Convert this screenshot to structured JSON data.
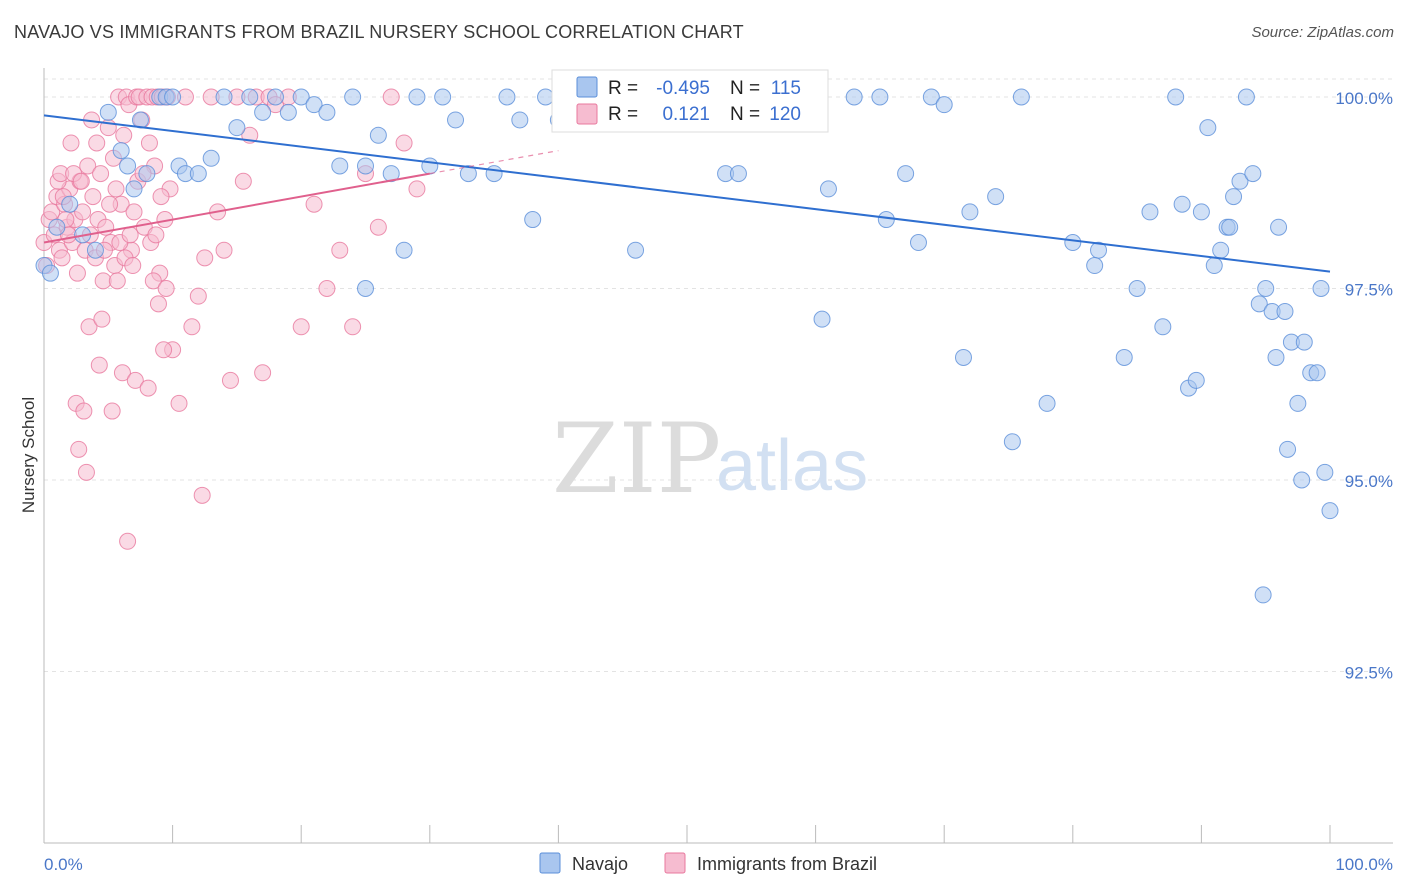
{
  "title": "NAVAJO VS IMMIGRANTS FROM BRAZIL NURSERY SCHOOL CORRELATION CHART",
  "source": "Source: ZipAtlas.com",
  "watermark": {
    "zip": "ZIP",
    "atlas": "atlas"
  },
  "colors": {
    "navajo_fill": "#a9c6ef",
    "navajo_stroke": "#5b8fd9",
    "navajo_line": "#2f6fd0",
    "brazil_fill": "#f6bcd0",
    "brazil_stroke": "#e8789e",
    "brazil_line": "#e0608d",
    "grid": "#e3e3e3",
    "tick_text": "#4a77c8"
  },
  "stats": {
    "r_label": "R =",
    "n_label": "N =",
    "navajo": {
      "r": "-0.495",
      "n": "115"
    },
    "brazil": {
      "r": "0.121",
      "n": "120"
    }
  },
  "chart_data": {
    "type": "scatter",
    "title": "NAVAJO VS IMMIGRANTS FROM BRAZIL NURSERY SCHOOL CORRELATION CHART",
    "xlabel": "",
    "ylabel": "Nursery School",
    "xlim": [
      0,
      100
    ],
    "ylim": [
      90.0,
      100.3
    ],
    "x_tick_labels": {
      "min": "0.0%",
      "max": "100.0%"
    },
    "y_ticks": [
      {
        "value": 100.0,
        "label": "100.0%"
      },
      {
        "value": 97.5,
        "label": "97.5%"
      },
      {
        "value": 95.0,
        "label": "95.0%"
      },
      {
        "value": 92.5,
        "label": "92.5%"
      }
    ],
    "legend": [
      {
        "name": "Navajo",
        "series": 0
      },
      {
        "name": "Immigrants from Brazil",
        "series": 1
      }
    ],
    "legend_position": "bottom-center",
    "grid": true,
    "trendlines": [
      {
        "series": 0,
        "x": [
          0,
          100
        ],
        "y": [
          99.76,
          97.72
        ]
      },
      {
        "series": 1,
        "x": [
          0,
          30
        ],
        "y": [
          98.1,
          99.0
        ],
        "dashed_to": [
          40,
          99.3
        ]
      }
    ],
    "series": [
      {
        "name": "Navajo",
        "points": [
          [
            0,
            97.8
          ],
          [
            0.5,
            97.7
          ],
          [
            1,
            98.3
          ],
          [
            2,
            98.6
          ],
          [
            3,
            98.2
          ],
          [
            4,
            98.0
          ],
          [
            5,
            99.8
          ],
          [
            6,
            99.3
          ],
          [
            6.5,
            99.1
          ],
          [
            7,
            98.8
          ],
          [
            7.5,
            99.7
          ],
          [
            8,
            99.0
          ],
          [
            9,
            100.0
          ],
          [
            9.5,
            100.0
          ],
          [
            10,
            100.0
          ],
          [
            10.5,
            99.1
          ],
          [
            11,
            99.0
          ],
          [
            12,
            99.0
          ],
          [
            13,
            99.2
          ],
          [
            14,
            100.0
          ],
          [
            15,
            99.6
          ],
          [
            16,
            100.0
          ],
          [
            17,
            99.8
          ],
          [
            18,
            100.0
          ],
          [
            19,
            99.8
          ],
          [
            20,
            100.0
          ],
          [
            21,
            99.9
          ],
          [
            22,
            99.8
          ],
          [
            23,
            99.1
          ],
          [
            24,
            100.0
          ],
          [
            25,
            99.1
          ],
          [
            26,
            99.5
          ],
          [
            27,
            99.0
          ],
          [
            25,
            97.5
          ],
          [
            28,
            98.0
          ],
          [
            29,
            100.0
          ],
          [
            30,
            99.1
          ],
          [
            31,
            100.0
          ],
          [
            32,
            99.7
          ],
          [
            33,
            99.0
          ],
          [
            35,
            99.0
          ],
          [
            36,
            100.0
          ],
          [
            37,
            99.7
          ],
          [
            38,
            98.4
          ],
          [
            39,
            100.0
          ],
          [
            40,
            99.7
          ],
          [
            42,
            100.0
          ],
          [
            44,
            100.0
          ],
          [
            46,
            98.0
          ],
          [
            48,
            100.0
          ],
          [
            50,
            100.0
          ],
          [
            52,
            99.7
          ],
          [
            53,
            99.0
          ],
          [
            54,
            99.0
          ],
          [
            55,
            100.0
          ],
          [
            57,
            99.8
          ],
          [
            59,
            100.0
          ],
          [
            61,
            98.8
          ],
          [
            63,
            100.0
          ],
          [
            65,
            100.0
          ],
          [
            67,
            99.0
          ],
          [
            68,
            98.1
          ],
          [
            69,
            100.0
          ],
          [
            70,
            99.9
          ],
          [
            72,
            98.5
          ],
          [
            74,
            98.7
          ],
          [
            76,
            100.0
          ],
          [
            78,
            96.0
          ],
          [
            80,
            98.1
          ],
          [
            82,
            98.0
          ],
          [
            84,
            96.6
          ],
          [
            85,
            97.5
          ],
          [
            86,
            98.5
          ],
          [
            87,
            97.0
          ],
          [
            88,
            100.0
          ],
          [
            89,
            96.2
          ],
          [
            90,
            98.5
          ],
          [
            91,
            97.8
          ],
          [
            91.5,
            98.0
          ],
          [
            92,
            98.3
          ],
          [
            92.5,
            98.7
          ],
          [
            93,
            98.9
          ],
          [
            93.5,
            100.0
          ],
          [
            94,
            99.0
          ],
          [
            94.5,
            97.3
          ],
          [
            95,
            97.5
          ],
          [
            95.5,
            97.2
          ],
          [
            96,
            98.3
          ],
          [
            96.5,
            97.2
          ],
          [
            97,
            96.8
          ],
          [
            97.5,
            96.0
          ],
          [
            97.8,
            95.0
          ],
          [
            98,
            96.8
          ],
          [
            98.5,
            96.4
          ],
          [
            99,
            96.4
          ],
          [
            99.3,
            97.5
          ],
          [
            99.6,
            95.1
          ],
          [
            100,
            94.6
          ],
          [
            94.8,
            93.5
          ],
          [
            96.7,
            95.4
          ],
          [
            92.2,
            98.3
          ],
          [
            88.5,
            98.6
          ],
          [
            90.5,
            99.6
          ],
          [
            89.6,
            96.3
          ],
          [
            60.5,
            97.1
          ],
          [
            65.5,
            98.4
          ],
          [
            71.5,
            96.6
          ],
          [
            75.3,
            95.5
          ],
          [
            81.7,
            97.8
          ],
          [
            95.8,
            96.6
          ]
        ]
      },
      {
        "name": "Immigrants from Brazil",
        "points": [
          [
            0,
            98.1
          ],
          [
            0.2,
            97.8
          ],
          [
            0.4,
            98.4
          ],
          [
            0.6,
            98.5
          ],
          [
            0.8,
            98.2
          ],
          [
            1,
            98.7
          ],
          [
            1.2,
            98.0
          ],
          [
            1.4,
            97.9
          ],
          [
            1.6,
            98.6
          ],
          [
            1.8,
            98.3
          ],
          [
            2,
            98.8
          ],
          [
            2.2,
            98.1
          ],
          [
            2.4,
            98.4
          ],
          [
            2.6,
            97.7
          ],
          [
            2.8,
            98.9
          ],
          [
            3,
            98.5
          ],
          [
            3.2,
            98.0
          ],
          [
            3.4,
            99.1
          ],
          [
            3.6,
            98.2
          ],
          [
            3.8,
            98.7
          ],
          [
            4,
            97.9
          ],
          [
            4.2,
            98.4
          ],
          [
            4.4,
            99.0
          ],
          [
            4.6,
            97.6
          ],
          [
            4.8,
            98.3
          ],
          [
            5,
            99.6
          ],
          [
            5.2,
            98.1
          ],
          [
            5.4,
            99.2
          ],
          [
            5.6,
            98.8
          ],
          [
            5.8,
            100.0
          ],
          [
            6,
            98.6
          ],
          [
            6.2,
            99.5
          ],
          [
            6.4,
            100.0
          ],
          [
            6.6,
            99.9
          ],
          [
            6.8,
            98.0
          ],
          [
            7,
            98.5
          ],
          [
            7.2,
            100.0
          ],
          [
            7.4,
            100.0
          ],
          [
            7.6,
            99.7
          ],
          [
            7.8,
            98.3
          ],
          [
            8,
            100.0
          ],
          [
            8.2,
            99.4
          ],
          [
            8.4,
            100.0
          ],
          [
            8.6,
            99.1
          ],
          [
            8.8,
            100.0
          ],
          [
            9,
            97.7
          ],
          [
            9.2,
            100.0
          ],
          [
            9.4,
            98.4
          ],
          [
            9.6,
            100.0
          ],
          [
            9.8,
            98.8
          ],
          [
            10,
            96.7
          ],
          [
            10.5,
            96.0
          ],
          [
            11,
            100.0
          ],
          [
            11.5,
            97.0
          ],
          [
            12,
            97.4
          ],
          [
            12.5,
            97.9
          ],
          [
            13,
            100.0
          ],
          [
            13.5,
            98.5
          ],
          [
            14,
            98.0
          ],
          [
            14.5,
            96.3
          ],
          [
            15,
            100.0
          ],
          [
            15.5,
            98.9
          ],
          [
            16,
            99.5
          ],
          [
            16.5,
            100.0
          ],
          [
            17,
            96.4
          ],
          [
            17.5,
            100.0
          ],
          [
            18,
            99.9
          ],
          [
            19,
            100.0
          ],
          [
            20,
            97.0
          ],
          [
            21,
            98.6
          ],
          [
            22,
            97.5
          ],
          [
            23,
            98.0
          ],
          [
            24,
            97.0
          ],
          [
            25,
            99.0
          ],
          [
            26,
            98.3
          ],
          [
            27,
            100.0
          ],
          [
            28,
            99.4
          ],
          [
            29,
            98.8
          ],
          [
            2.5,
            96.0
          ],
          [
            2.7,
            95.4
          ],
          [
            3.1,
            95.9
          ],
          [
            3.3,
            95.1
          ],
          [
            4.3,
            96.5
          ],
          [
            5.3,
            95.9
          ],
          [
            6.5,
            94.2
          ],
          [
            12.3,
            94.8
          ],
          [
            3.5,
            97.0
          ],
          [
            4.5,
            97.1
          ],
          [
            6.1,
            96.4
          ],
          [
            7.1,
            96.3
          ],
          [
            8.1,
            96.2
          ],
          [
            9.3,
            96.7
          ],
          [
            1.1,
            98.9
          ],
          [
            1.3,
            99.0
          ],
          [
            1.5,
            98.7
          ],
          [
            1.7,
            98.4
          ],
          [
            1.9,
            98.2
          ],
          [
            2.1,
            99.4
          ],
          [
            2.3,
            99.0
          ],
          [
            2.9,
            98.9
          ],
          [
            3.7,
            99.7
          ],
          [
            4.1,
            99.4
          ],
          [
            4.7,
            98.0
          ],
          [
            5.1,
            98.6
          ],
          [
            5.5,
            97.8
          ],
          [
            5.7,
            97.6
          ],
          [
            5.9,
            98.1
          ],
          [
            6.3,
            97.9
          ],
          [
            6.7,
            98.2
          ],
          [
            6.9,
            97.8
          ],
          [
            7.3,
            98.9
          ],
          [
            7.7,
            99.0
          ],
          [
            8.3,
            98.1
          ],
          [
            8.5,
            97.6
          ],
          [
            8.7,
            98.2
          ],
          [
            8.9,
            97.3
          ],
          [
            9.1,
            98.7
          ],
          [
            9.5,
            97.5
          ]
        ]
      }
    ]
  }
}
